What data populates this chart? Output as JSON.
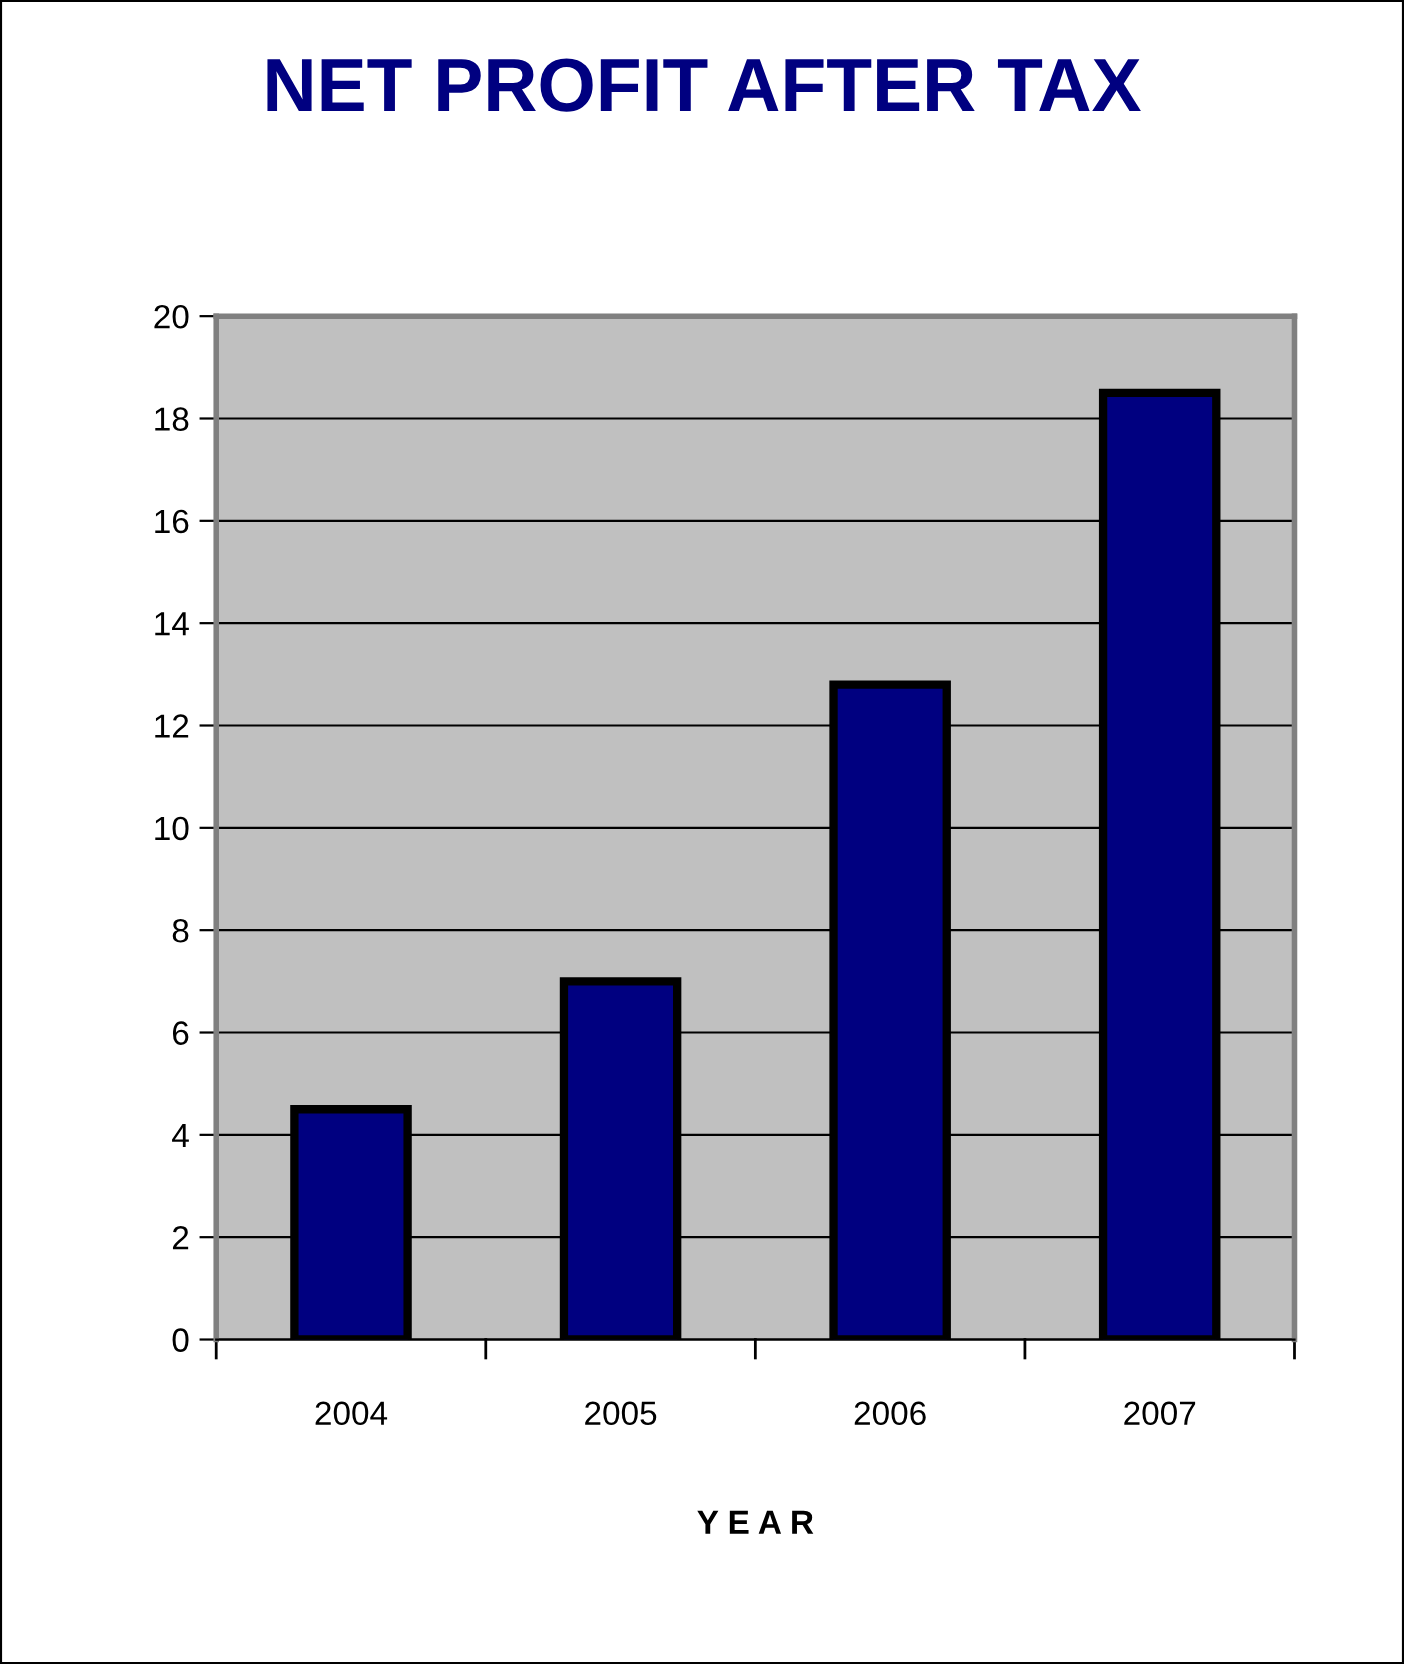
{
  "chart_data": {
    "type": "bar",
    "title": "NET PROFIT AFTER TAX",
    "xlabel": "Y E A R",
    "categories": [
      "2004",
      "2005",
      "2006",
      "2007"
    ],
    "values": [
      4.5,
      7.0,
      12.8,
      18.5
    ],
    "color": "#000080",
    "ylim": [
      0,
      20
    ],
    "yticks": [
      0,
      2,
      4,
      6,
      8,
      10,
      12,
      14,
      16,
      18,
      20
    ],
    "grid": "y"
  }
}
